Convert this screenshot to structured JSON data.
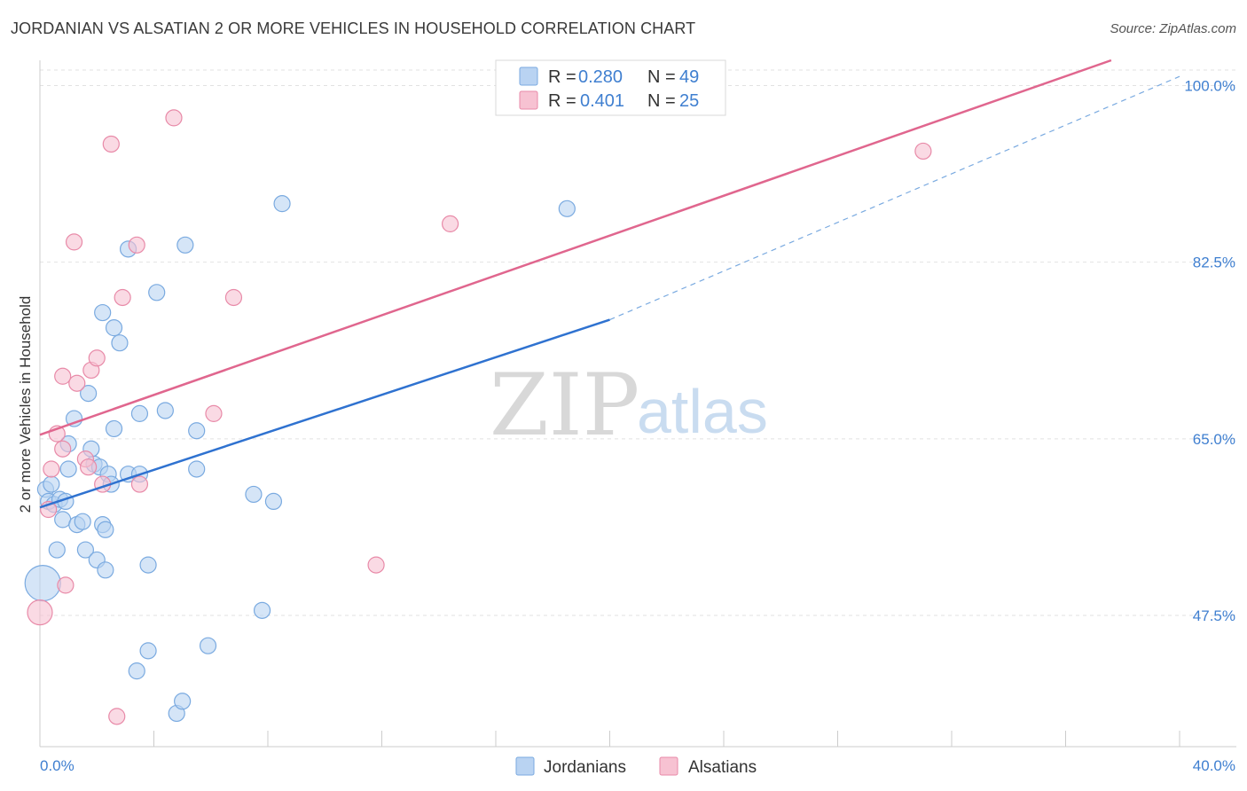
{
  "title": "JORDANIAN VS ALSATIAN 2 OR MORE VEHICLES IN HOUSEHOLD CORRELATION CHART",
  "source": "Source: ZipAtlas.com",
  "watermark": {
    "zip": "ZIP",
    "atlas": "atlas"
  },
  "colors": {
    "jordanian_fill": "#b9d3f2",
    "jordanian_stroke": "#7aaae0",
    "jordanian_line": "#2f72d0",
    "alsatian_fill": "#f7c2d2",
    "alsatian_stroke": "#e88aa8",
    "alsatian_line": "#e0668e",
    "tick_text": "#3f7fd0"
  },
  "legend": {
    "rows": [
      {
        "r_label": "R =",
        "r_value": "0.280",
        "n_label": "N =",
        "n_value": "49"
      },
      {
        "r_label": "R =",
        "r_value": "0.401",
        "n_label": "N =",
        "n_value": "25"
      }
    ]
  },
  "bottom_legend": {
    "items": [
      "Jordanians",
      "Alsatians"
    ]
  },
  "chart_data": {
    "type": "scatter",
    "title": "JORDANIAN VS ALSATIAN 2 OR MORE VEHICLES IN HOUSEHOLD CORRELATION CHART",
    "xlabel": "",
    "ylabel": "2 or more Vehicles in Household",
    "xlim": [
      0,
      40
    ],
    "ylim": [
      34.5,
      102.5
    ],
    "x_tick_labels": [
      "0.0%",
      "40.0%"
    ],
    "y_ticks": [
      47.5,
      65.0,
      82.5,
      100.0
    ],
    "y_tick_labels": [
      "47.5%",
      "65.0%",
      "82.5%",
      "100.0%"
    ],
    "grid": true,
    "legend_position": "top-center",
    "series": [
      {
        "name": "Jordanians",
        "r": 0.28,
        "n": 49,
        "trend": {
          "x0": 0,
          "y0": 58.2,
          "x1": 20,
          "y1": 76.8,
          "dashed_to_x": 40,
          "dashed_to_y": 100.9
        },
        "points": [
          [
            0.1,
            50.7,
            20
          ],
          [
            0.2,
            60.0,
            9
          ],
          [
            0.3,
            58.8,
            9
          ],
          [
            0.4,
            60.5,
            9
          ],
          [
            0.5,
            58.5,
            9
          ],
          [
            0.6,
            54.0,
            9
          ],
          [
            0.7,
            59.0,
            9
          ],
          [
            0.8,
            57.0,
            9
          ],
          [
            1.0,
            62.0,
            9
          ],
          [
            1.0,
            64.5,
            9
          ],
          [
            1.2,
            67.0,
            9
          ],
          [
            1.3,
            56.5,
            9
          ],
          [
            1.5,
            56.8,
            9
          ],
          [
            1.6,
            54.0,
            9
          ],
          [
            1.7,
            69.5,
            9
          ],
          [
            1.8,
            64.0,
            9
          ],
          [
            1.9,
            62.5,
            9
          ],
          [
            2.0,
            53.0,
            9
          ],
          [
            2.1,
            62.2,
            9
          ],
          [
            2.2,
            77.5,
            9
          ],
          [
            2.2,
            56.5,
            9
          ],
          [
            2.3,
            56.0,
            9
          ],
          [
            2.3,
            52.0,
            9
          ],
          [
            2.4,
            61.5,
            9
          ],
          [
            2.5,
            60.5,
            9
          ],
          [
            2.6,
            66.0,
            9
          ],
          [
            2.6,
            76.0,
            9
          ],
          [
            2.8,
            74.5,
            9
          ],
          [
            3.1,
            61.5,
            9
          ],
          [
            3.1,
            83.8,
            9
          ],
          [
            3.4,
            42.0,
            9
          ],
          [
            3.5,
            61.5,
            9
          ],
          [
            3.5,
            67.5,
            9
          ],
          [
            3.8,
            52.5,
            9
          ],
          [
            3.8,
            44.0,
            9
          ],
          [
            4.1,
            79.5,
            9
          ],
          [
            4.4,
            67.8,
            9
          ],
          [
            4.8,
            37.8,
            9
          ],
          [
            5.0,
            39.0,
            9
          ],
          [
            5.1,
            84.2,
            9
          ],
          [
            5.5,
            62.0,
            9
          ],
          [
            5.5,
            65.8,
            9
          ],
          [
            5.9,
            44.5,
            9
          ],
          [
            7.5,
            59.5,
            9
          ],
          [
            7.8,
            48.0,
            9
          ],
          [
            8.2,
            58.8,
            9
          ],
          [
            8.5,
            88.3,
            9
          ],
          [
            18.5,
            87.8,
            9
          ],
          [
            0.9,
            58.8,
            9
          ]
        ]
      },
      {
        "name": "Alsatians",
        "r": 0.401,
        "n": 25,
        "trend": {
          "x0": 0,
          "y0": 65.4,
          "x1": 37.6,
          "y1": 102.5
        },
        "points": [
          [
            0.0,
            47.8,
            14
          ],
          [
            0.3,
            58.0,
            9
          ],
          [
            0.4,
            62.0,
            9
          ],
          [
            0.6,
            65.5,
            9
          ],
          [
            0.8,
            71.2,
            9
          ],
          [
            0.8,
            64.0,
            9
          ],
          [
            0.9,
            50.5,
            9
          ],
          [
            1.2,
            84.5,
            9
          ],
          [
            1.3,
            70.5,
            9
          ],
          [
            1.6,
            63.0,
            9
          ],
          [
            1.7,
            62.2,
            9
          ],
          [
            1.8,
            71.8,
            9
          ],
          [
            2.0,
            73.0,
            9
          ],
          [
            2.2,
            60.5,
            9
          ],
          [
            2.5,
            94.2,
            9
          ],
          [
            2.7,
            37.5,
            9
          ],
          [
            2.9,
            79.0,
            9
          ],
          [
            3.4,
            84.2,
            9
          ],
          [
            3.5,
            60.5,
            9
          ],
          [
            4.7,
            96.8,
            9
          ],
          [
            6.1,
            67.5,
            9
          ],
          [
            6.8,
            79.0,
            9
          ],
          [
            11.8,
            52.5,
            9
          ],
          [
            14.4,
            86.3,
            9
          ],
          [
            31.0,
            93.5,
            9
          ]
        ]
      }
    ]
  }
}
